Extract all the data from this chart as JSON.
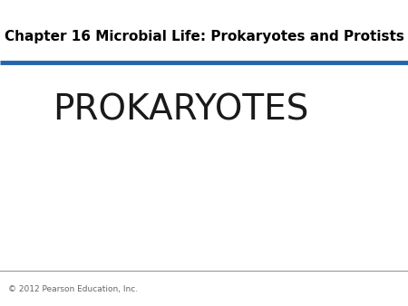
{
  "title": "Chapter 16 Microbial Life: Prokaryotes and Protists",
  "main_text": "PROKARYOTES",
  "footer_text": "© 2012 Pearson Education, Inc.",
  "background_color": "#ffffff",
  "title_color": "#000000",
  "main_text_color": "#1a1a1a",
  "footer_color": "#666666",
  "blue_line_color": "#2266aa",
  "gray_line_color": "#999999",
  "title_fontsize": 11,
  "main_fontsize": 28,
  "footer_fontsize": 6.5
}
